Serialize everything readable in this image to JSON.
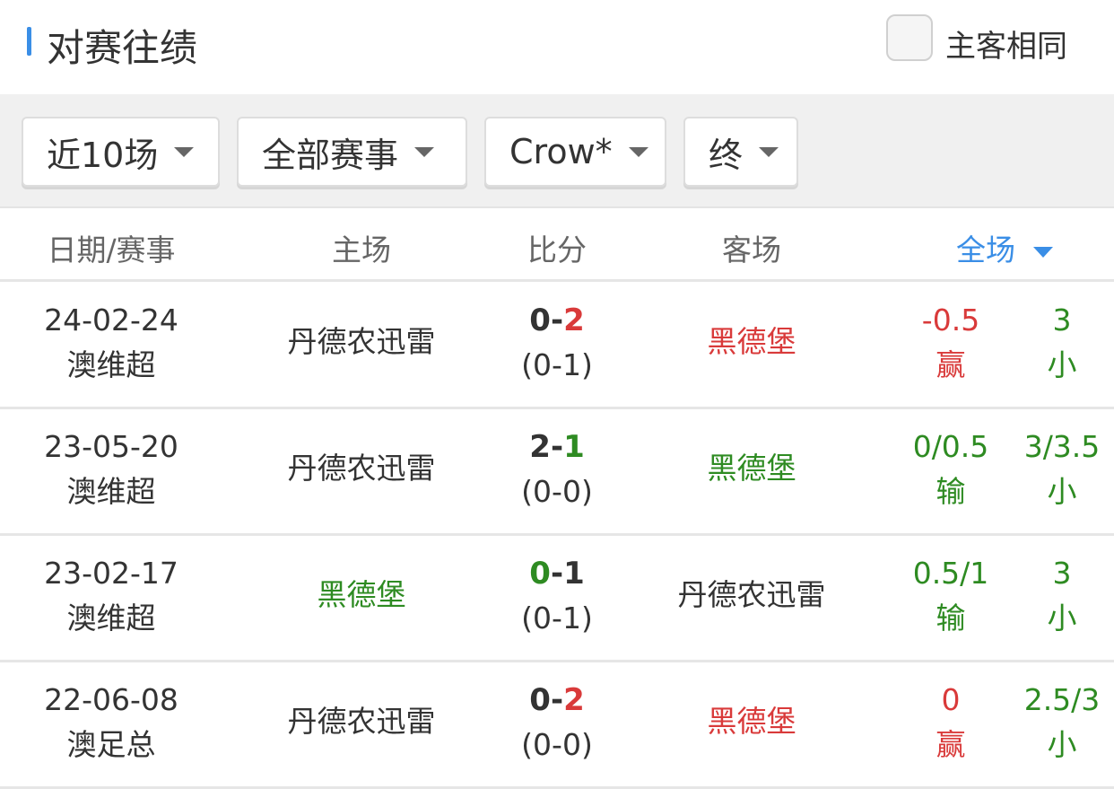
{
  "header": {
    "title": "对赛往绩",
    "same_home_away_label": "主客相同",
    "same_home_away_checked": false,
    "accent": "#3a8ee6"
  },
  "filters": [
    {
      "label": "近10场"
    },
    {
      "label": "全部赛事"
    },
    {
      "label": "Crow*"
    },
    {
      "label": "终"
    }
  ],
  "columns": {
    "date": "日期/赛事",
    "home": "主场",
    "score": "比分",
    "away": "客场",
    "full": "全场"
  },
  "colors": {
    "red": "#d93a3a",
    "green": "#2e8b22",
    "text": "#333333"
  },
  "rows": [
    {
      "date": "24-02-24",
      "league": "澳维超",
      "home": "丹德农迅雷",
      "home_color": "dark",
      "home_goals": "0",
      "away_goals": "2",
      "home_goals_color": "dark",
      "away_goals_color": "red",
      "halftime": "(0-1)",
      "away": "黑德堡",
      "away_color": "red",
      "handicap": "-0.5",
      "handicap_result": "赢",
      "handicap_color": "red",
      "total": "3",
      "total_result": "小",
      "total_color": "green"
    },
    {
      "date": "23-05-20",
      "league": "澳维超",
      "home": "丹德农迅雷",
      "home_color": "dark",
      "home_goals": "2",
      "away_goals": "1",
      "home_goals_color": "dark",
      "away_goals_color": "green",
      "halftime": "(0-0)",
      "away": "黑德堡",
      "away_color": "green",
      "handicap": "0/0.5",
      "handicap_result": "输",
      "handicap_color": "green",
      "total": "3/3.5",
      "total_result": "小",
      "total_color": "green"
    },
    {
      "date": "23-02-17",
      "league": "澳维超",
      "home": "黑德堡",
      "home_color": "green",
      "home_goals": "0",
      "away_goals": "1",
      "home_goals_color": "green",
      "away_goals_color": "dark",
      "halftime": "(0-1)",
      "away": "丹德农迅雷",
      "away_color": "dark",
      "handicap": "0.5/1",
      "handicap_result": "输",
      "handicap_color": "green",
      "total": "3",
      "total_result": "小",
      "total_color": "green"
    },
    {
      "date": "22-06-08",
      "league": "澳足总",
      "home": "丹德农迅雷",
      "home_color": "dark",
      "home_goals": "0",
      "away_goals": "2",
      "home_goals_color": "dark",
      "away_goals_color": "red",
      "halftime": "(0-0)",
      "away": "黑德堡",
      "away_color": "red",
      "handicap": "0",
      "handicap_result": "赢",
      "handicap_color": "red",
      "total": "2.5/3",
      "total_result": "小",
      "total_color": "green"
    }
  ]
}
